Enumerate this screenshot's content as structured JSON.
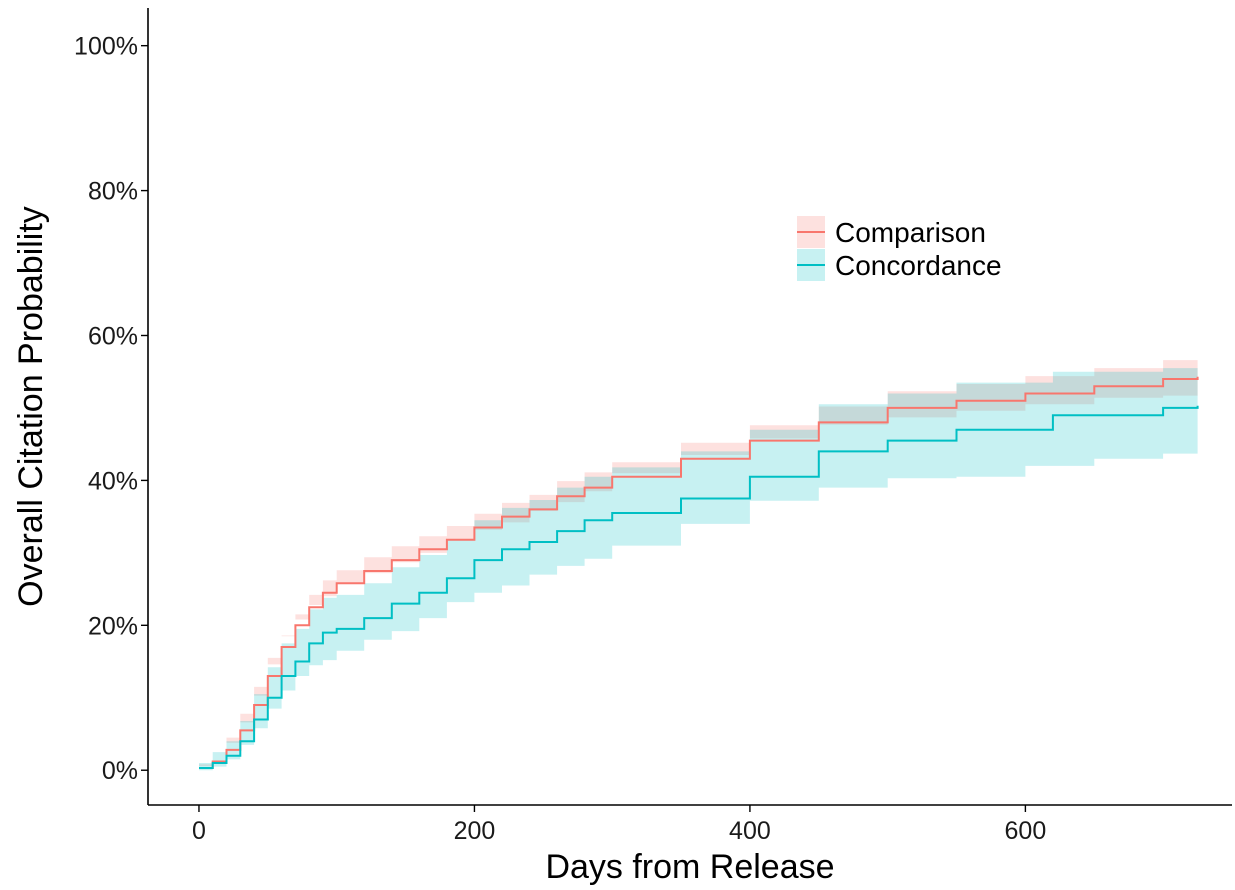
{
  "chart_data": {
    "type": "line",
    "xlabel": "Days from Release",
    "ylabel": "Overall Citation Probability",
    "xlim": [
      -37,
      750
    ],
    "ylim": [
      -0.048,
      1.052
    ],
    "x_ticks": [
      0,
      200,
      400,
      600
    ],
    "x_tick_labels": [
      "0",
      "200",
      "400",
      "600"
    ],
    "y_ticks": [
      0,
      0.2,
      0.4,
      0.6,
      0.8,
      1.0
    ],
    "y_tick_labels": [
      "0%",
      "20%",
      "40%",
      "60%",
      "80%",
      "100%"
    ],
    "grid": false,
    "legend_position": "right",
    "series": [
      {
        "name": "Comparison",
        "color": "#F8766D",
        "fill": "#F8766D",
        "x": [
          0,
          10,
          20,
          30,
          40,
          50,
          60,
          70,
          80,
          90,
          100,
          120,
          140,
          160,
          180,
          200,
          220,
          240,
          260,
          280,
          300,
          350,
          400,
          450,
          500,
          550,
          600,
          650,
          700,
          725
        ],
        "y": [
          0.003,
          0.012,
          0.028,
          0.055,
          0.09,
          0.13,
          0.17,
          0.2,
          0.225,
          0.245,
          0.258,
          0.275,
          0.29,
          0.305,
          0.318,
          0.335,
          0.35,
          0.36,
          0.378,
          0.39,
          0.405,
          0.43,
          0.455,
          0.48,
          0.5,
          0.51,
          0.52,
          0.53,
          0.54,
          0.543
        ],
        "lower": [
          0.0,
          0.006,
          0.02,
          0.045,
          0.078,
          0.115,
          0.155,
          0.185,
          0.208,
          0.228,
          0.24,
          0.257,
          0.272,
          0.287,
          0.3,
          0.317,
          0.332,
          0.342,
          0.358,
          0.37,
          0.385,
          0.41,
          0.435,
          0.458,
          0.477,
          0.487,
          0.496,
          0.505,
          0.514,
          0.517
        ],
        "upper": [
          0.008,
          0.02,
          0.038,
          0.066,
          0.103,
          0.146,
          0.186,
          0.215,
          0.242,
          0.262,
          0.276,
          0.294,
          0.309,
          0.323,
          0.337,
          0.354,
          0.369,
          0.38,
          0.399,
          0.411,
          0.425,
          0.452,
          0.476,
          0.502,
          0.523,
          0.533,
          0.544,
          0.555,
          0.566,
          0.568
        ]
      },
      {
        "name": "Concordance",
        "color": "#00BFC4",
        "fill": "#00BFC4",
        "x": [
          0,
          10,
          20,
          30,
          40,
          50,
          60,
          70,
          80,
          90,
          100,
          120,
          140,
          160,
          180,
          200,
          220,
          240,
          260,
          280,
          300,
          350,
          400,
          450,
          500,
          550,
          600,
          620,
          650,
          700,
          725
        ],
        "y": [
          0.003,
          0.01,
          0.02,
          0.04,
          0.07,
          0.1,
          0.13,
          0.15,
          0.175,
          0.19,
          0.195,
          0.21,
          0.23,
          0.245,
          0.265,
          0.29,
          0.305,
          0.315,
          0.33,
          0.345,
          0.355,
          0.375,
          0.405,
          0.44,
          0.455,
          0.47,
          0.47,
          0.49,
          0.49,
          0.5,
          0.503
        ],
        "lower": [
          0.0,
          0.0,
          0.005,
          0.015,
          0.035,
          0.058,
          0.085,
          0.11,
          0.13,
          0.145,
          0.152,
          0.165,
          0.18,
          0.192,
          0.21,
          0.232,
          0.245,
          0.255,
          0.27,
          0.282,
          0.292,
          0.31,
          0.34,
          0.372,
          0.39,
          0.403,
          0.405,
          0.42,
          0.42,
          0.43,
          0.437
        ],
        "upper": [
          0.01,
          0.025,
          0.04,
          0.068,
          0.105,
          0.142,
          0.175,
          0.195,
          0.222,
          0.238,
          0.242,
          0.258,
          0.28,
          0.297,
          0.318,
          0.345,
          0.362,
          0.373,
          0.39,
          0.405,
          0.418,
          0.44,
          0.47,
          0.505,
          0.52,
          0.535,
          0.535,
          0.55,
          0.55,
          0.555,
          0.557
        ]
      }
    ]
  }
}
